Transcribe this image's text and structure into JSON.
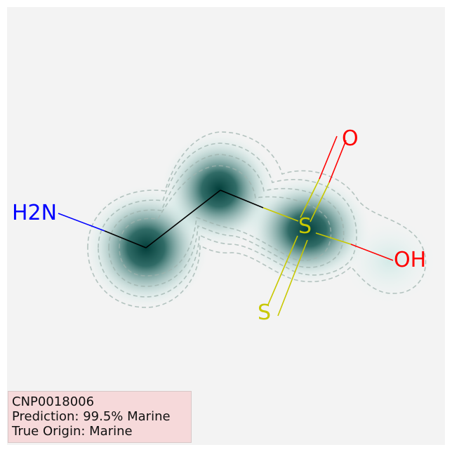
{
  "molecule": {
    "atoms": [
      {
        "id": "N",
        "label": "H2N",
        "color": "#0000ff",
        "labeled": true
      },
      {
        "id": "C1",
        "label": "",
        "labeled": false
      },
      {
        "id": "C2",
        "label": "",
        "labeled": false
      },
      {
        "id": "S1",
        "label": "S",
        "color": "#c8c800",
        "labeled": true
      },
      {
        "id": "O1",
        "label": "O",
        "color": "#ff0000",
        "labeled": true
      },
      {
        "id": "OH",
        "label": "OH",
        "color": "#ff0000",
        "labeled": true
      },
      {
        "id": "S2",
        "label": "S",
        "color": "#c8c800",
        "labeled": true
      }
    ],
    "bonds": [
      {
        "a": "N",
        "b": "C1",
        "order": 1
      },
      {
        "a": "C1",
        "b": "C2",
        "order": 1
      },
      {
        "a": "C2",
        "b": "S1",
        "order": 1
      },
      {
        "a": "S1",
        "b": "O1",
        "order": 2
      },
      {
        "a": "S1",
        "b": "OH",
        "order": 1
      },
      {
        "a": "S1",
        "b": "S2",
        "order": 2
      }
    ],
    "heatmap_color": "#0b4f4a",
    "contour_color": "#9aaea9"
  },
  "info": {
    "id": "CNP0018006",
    "prediction": "Prediction: 99.5% Marine",
    "true_origin": "True Origin: Marine"
  }
}
